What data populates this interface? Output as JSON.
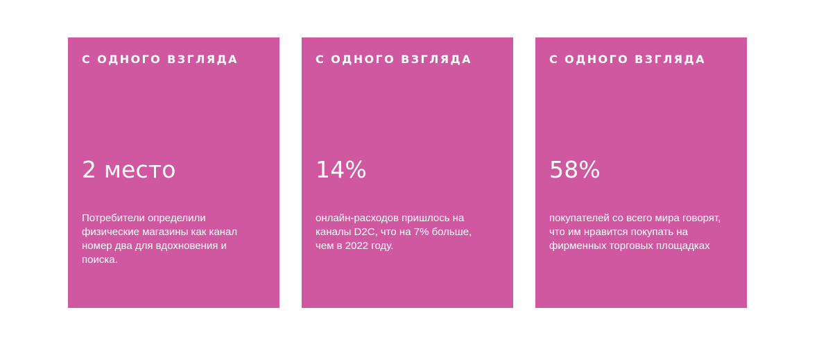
{
  "cards": [
    {
      "label": "С одного взгляда",
      "stat": "2 место",
      "lines": [
        "Потребители определили",
        "физические магазины как канал",
        "номер два для вдохновения и",
        "поиска."
      ]
    },
    {
      "label": "С одного взгляда",
      "stat": "14%",
      "lines": [
        "онлайн-расходов пришлось на",
        "каналы D2C, что на 7% больше,",
        "чем в 2022 году."
      ]
    },
    {
      "label": "С одного взгляда",
      "stat": "58%",
      "lines": [
        "покупателей со всего мира говорят,",
        "что им нравится покупать на",
        "фирменных торговых площадках"
      ]
    }
  ],
  "colors": {
    "card_background": "#cf58a0",
    "card_text": "#ffffff",
    "page_background": "#ffffff"
  }
}
